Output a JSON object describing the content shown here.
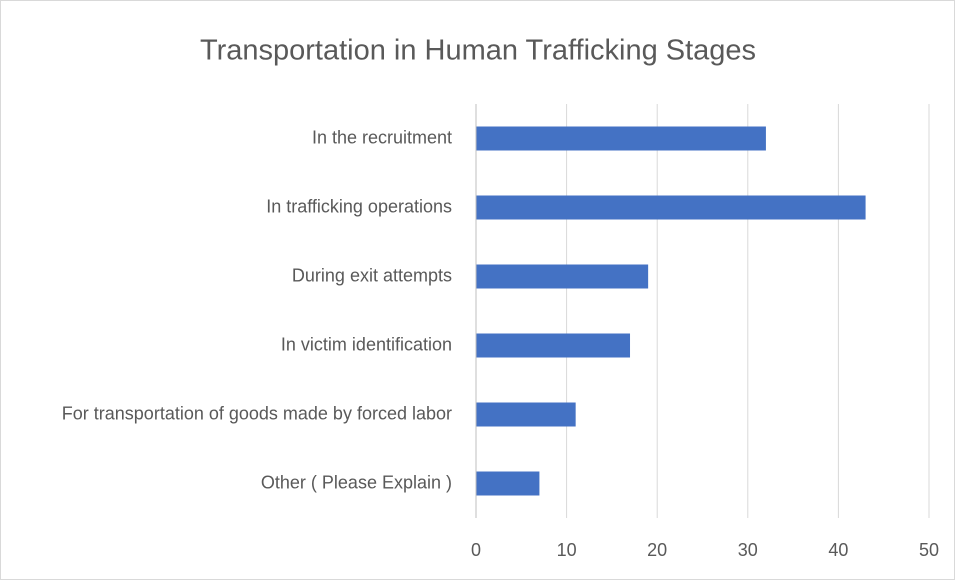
{
  "chart_data": {
    "type": "bar",
    "orientation": "horizontal",
    "title": "Transportation in Human Trafficking Stages",
    "categories": [
      "In the recruitment",
      "In trafficking operations",
      "During exit attempts",
      "In victim identification",
      "For transportation of goods made by forced labor",
      "Other ( Please Explain )"
    ],
    "values": [
      32,
      43,
      19,
      17,
      11,
      7
    ],
    "color": "#4472c4",
    "xlim": [
      0,
      50
    ],
    "xticks": [
      0,
      10,
      20,
      30,
      40,
      50
    ],
    "grid": true
  }
}
